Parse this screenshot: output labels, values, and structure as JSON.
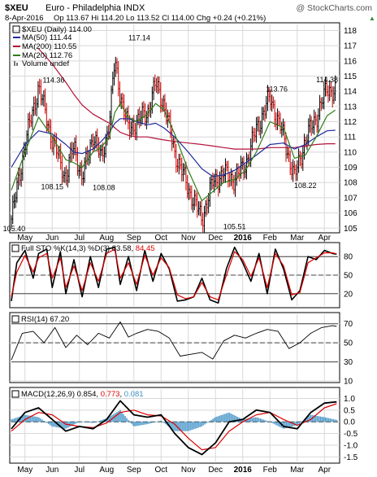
{
  "header": {
    "symbol": "$XEU",
    "name": "Euro - Philadelphia INDX",
    "watermark": "@ StockCharts.com",
    "date": "8-Apr-2016",
    "quote": "Op 113.67 Hi 114.20 Lo 113.52 Cl 114.00 Chg +0.24 (+0.21%)",
    "change_arrow": "▲"
  },
  "colors": {
    "price": "#000000",
    "up": "#000000",
    "down": "#cc0000",
    "ma50": "#1e2a9c",
    "ma200": "#b3133a",
    "ma20": "#2e7d16",
    "sto_k": "#000000",
    "sto_d": "#dd0000",
    "macd": "#000000",
    "signal": "#dd0000",
    "hist": "#3b8fc4",
    "grid": "#d8d8d8"
  },
  "x_axis": {
    "labels": [
      "May",
      "Jun",
      "Jul",
      "Aug",
      "Sep",
      "Oct",
      "Nov",
      "Dec",
      "2016",
      "Feb",
      "Mar",
      "Apr"
    ],
    "positions": [
      0.5,
      1.5,
      2.5,
      3.5,
      4.5,
      5.5,
      6.5,
      7.5,
      8.5,
      9.5,
      10.5,
      11.5
    ],
    "bold_index": 8
  },
  "chart_data": [
    {
      "type": "line",
      "title": "$XEU (Daily) 114.00",
      "series": [
        {
          "name": "MA(50) 111.44",
          "key": "ma50"
        },
        {
          "name": "MA(200) 110.55",
          "key": "ma200"
        },
        {
          "name": "MA(20) 112.76",
          "key": "ma20"
        },
        {
          "name": "Volume undef",
          "key": "volume"
        }
      ],
      "ylim": [
        104.8,
        118.4
      ],
      "yticks": [
        105,
        106,
        107,
        108,
        109,
        110,
        111,
        112,
        113,
        114,
        115,
        116,
        117,
        118
      ],
      "grid": true,
      "legend": "top-left",
      "x": [
        0,
        0.5,
        1.0,
        1.5,
        2.0,
        2.3,
        2.6,
        3.0,
        3.3,
        3.6,
        3.8,
        4.0,
        4.3,
        4.6,
        5.0,
        5.3,
        5.6,
        6.0,
        6.5,
        7.0,
        7.4,
        7.8,
        8.2,
        8.6,
        9.0,
        9.5,
        10.0,
        10.4,
        10.8,
        11.2,
        11.6,
        11.9
      ],
      "price": [
        105.6,
        110.5,
        114.3,
        110.8,
        108.3,
        110.5,
        108.2,
        111.2,
        109.5,
        112.0,
        116.0,
        113.8,
        111.5,
        112.0,
        112.6,
        114.5,
        113.2,
        110.0,
        107.6,
        105.6,
        108.0,
        108.6,
        108.2,
        109.2,
        111.5,
        113.6,
        111.0,
        108.3,
        110.8,
        112.3,
        114.2,
        114.0
      ],
      "ma50": [
        109.0,
        110.5,
        111.4,
        111.2,
        110.5,
        110.0,
        109.9,
        110.2,
        110.7,
        111.3,
        111.9,
        112.2,
        112.2,
        112.0,
        111.8,
        111.9,
        111.6,
        111.0,
        110.0,
        108.9,
        108.4,
        108.5,
        108.8,
        109.3,
        109.8,
        110.5,
        110.6,
        110.2,
        110.5,
        111.0,
        111.4,
        111.44
      ],
      "ma200": [
        null,
        null,
        116.8,
        115.8,
        114.6,
        113.8,
        113.1,
        112.5,
        112.2,
        111.9,
        111.6,
        111.3,
        111.1,
        111.0,
        111.0,
        110.9,
        110.8,
        110.7,
        110.6,
        110.5,
        110.4,
        110.3,
        110.2,
        110.2,
        110.2,
        110.3,
        110.3,
        110.3,
        110.4,
        110.5,
        110.55,
        110.55
      ],
      "ma20": [
        107.5,
        110.0,
        112.3,
        111.0,
        109.5,
        109.3,
        109.0,
        110.0,
        110.3,
        111.0,
        112.6,
        113.2,
        112.3,
        112.0,
        112.5,
        113.2,
        112.8,
        111.2,
        108.8,
        106.8,
        107.4,
        108.0,
        108.2,
        108.8,
        110.0,
        112.0,
        111.6,
        109.6,
        109.8,
        111.0,
        112.4,
        112.76
      ],
      "annotations": [
        {
          "label": "105.40",
          "x": 0.1,
          "y": 105.4,
          "pos": "below"
        },
        {
          "label": "114.36",
          "x": 1.55,
          "y": 114.36,
          "pos": "above"
        },
        {
          "label": "108.15",
          "x": 1.5,
          "y": 108.15,
          "pos": "below"
        },
        {
          "label": "108.08",
          "x": 3.4,
          "y": 108.08,
          "pos": "below"
        },
        {
          "label": "117.14",
          "x": 4.7,
          "y": 117.14,
          "pos": "above"
        },
        {
          "label": "105.51",
          "x": 8.2,
          "y": 105.51,
          "pos": "below"
        },
        {
          "label": "113.76",
          "x": 9.75,
          "y": 113.76,
          "pos": "above"
        },
        {
          "label": "108.22",
          "x": 10.8,
          "y": 108.22,
          "pos": "below"
        },
        {
          "label": "114.38",
          "x": 11.6,
          "y": 114.38,
          "pos": "above"
        }
      ]
    },
    {
      "type": "line",
      "title_prefix": "Full STO %K(14,3) %D(3) 83.58, ",
      "title_value": "84.45",
      "ylim": [
        0,
        100
      ],
      "yticks": [
        20,
        50,
        80
      ],
      "grid": true,
      "x": [
        0,
        0.2,
        0.5,
        0.8,
        1.0,
        1.3,
        1.5,
        1.8,
        2.0,
        2.3,
        2.6,
        2.9,
        3.2,
        3.5,
        3.8,
        4.0,
        4.3,
        4.6,
        4.9,
        5.2,
        5.5,
        5.8,
        6.1,
        6.4,
        6.7,
        7.0,
        7.3,
        7.6,
        7.9,
        8.2,
        8.5,
        8.8,
        9.1,
        9.4,
        9.7,
        10.0,
        10.3,
        10.6,
        10.9,
        11.2,
        11.5,
        11.8,
        11.95
      ],
      "k": [
        8,
        70,
        90,
        45,
        85,
        92,
        30,
        88,
        20,
        75,
        15,
        80,
        30,
        92,
        95,
        35,
        80,
        25,
        90,
        40,
        85,
        60,
        8,
        10,
        15,
        45,
        10,
        5,
        60,
        95,
        70,
        40,
        85,
        20,
        92,
        60,
        10,
        25,
        80,
        75,
        90,
        85,
        84
      ],
      "d": [
        15,
        55,
        82,
        55,
        78,
        85,
        45,
        78,
        30,
        65,
        25,
        70,
        40,
        85,
        92,
        45,
        70,
        35,
        82,
        50,
        78,
        62,
        18,
        12,
        15,
        38,
        15,
        10,
        50,
        88,
        75,
        48,
        78,
        30,
        85,
        65,
        18,
        22,
        70,
        78,
        86,
        86,
        84.45
      ]
    },
    {
      "type": "line",
      "title": "RSI(14) 67.20",
      "ylim": [
        10,
        80
      ],
      "yticks": [
        10,
        30,
        50,
        70
      ],
      "grid": true,
      "x": [
        0,
        0.4,
        0.8,
        1.2,
        1.6,
        2.0,
        2.4,
        2.8,
        3.2,
        3.6,
        4.0,
        4.3,
        4.6,
        5.0,
        5.4,
        5.8,
        6.2,
        6.6,
        7.0,
        7.4,
        7.8,
        8.2,
        8.6,
        9.0,
        9.4,
        9.8,
        10.2,
        10.6,
        11.0,
        11.4,
        11.8,
        11.95
      ],
      "rsi": [
        32,
        60,
        62,
        50,
        66,
        45,
        58,
        48,
        60,
        55,
        72,
        56,
        60,
        64,
        62,
        55,
        36,
        38,
        40,
        33,
        52,
        58,
        55,
        60,
        64,
        62,
        44,
        50,
        60,
        66,
        68,
        67.2
      ]
    },
    {
      "type": "line",
      "title_prefix": "MACD(12,26,9) 0.854, ",
      "signal_value": "0.773",
      "hist_value": "0.081",
      "ylim": [
        -1.7,
        1.4
      ],
      "yticks": [
        -1.5,
        -1.0,
        -0.5,
        0.0,
        0.5,
        1.0
      ],
      "grid": true,
      "x": [
        0,
        0.5,
        1.0,
        1.5,
        2.0,
        2.5,
        3.0,
        3.5,
        4.0,
        4.5,
        5.0,
        5.5,
        6.0,
        6.5,
        7.0,
        7.5,
        8.0,
        8.5,
        9.0,
        9.5,
        10.0,
        10.5,
        11.0,
        11.5,
        11.95
      ],
      "macd": [
        -0.3,
        0.4,
        0.6,
        0.1,
        -0.4,
        -0.2,
        -0.3,
        0.1,
        0.9,
        0.3,
        0.2,
        0.3,
        -0.5,
        -1.1,
        -1.4,
        -0.9,
        0.0,
        0.1,
        0.5,
        0.4,
        -0.2,
        -0.3,
        0.4,
        0.8,
        0.854
      ],
      "signal": [
        -0.4,
        0.1,
        0.4,
        0.3,
        -0.1,
        -0.2,
        -0.25,
        -0.05,
        0.4,
        0.5,
        0.3,
        0.25,
        -0.1,
        -0.7,
        -1.2,
        -1.1,
        -0.4,
        0.0,
        0.3,
        0.4,
        0.1,
        -0.15,
        0.1,
        0.6,
        0.773
      ],
      "hist": [
        0.1,
        0.3,
        0.2,
        -0.2,
        -0.3,
        0.0,
        -0.05,
        0.15,
        0.5,
        -0.2,
        -0.1,
        0.05,
        -0.4,
        -0.4,
        -0.2,
        0.2,
        0.4,
        0.1,
        0.2,
        0.0,
        -0.3,
        -0.15,
        0.3,
        0.2,
        0.081
      ]
    }
  ]
}
